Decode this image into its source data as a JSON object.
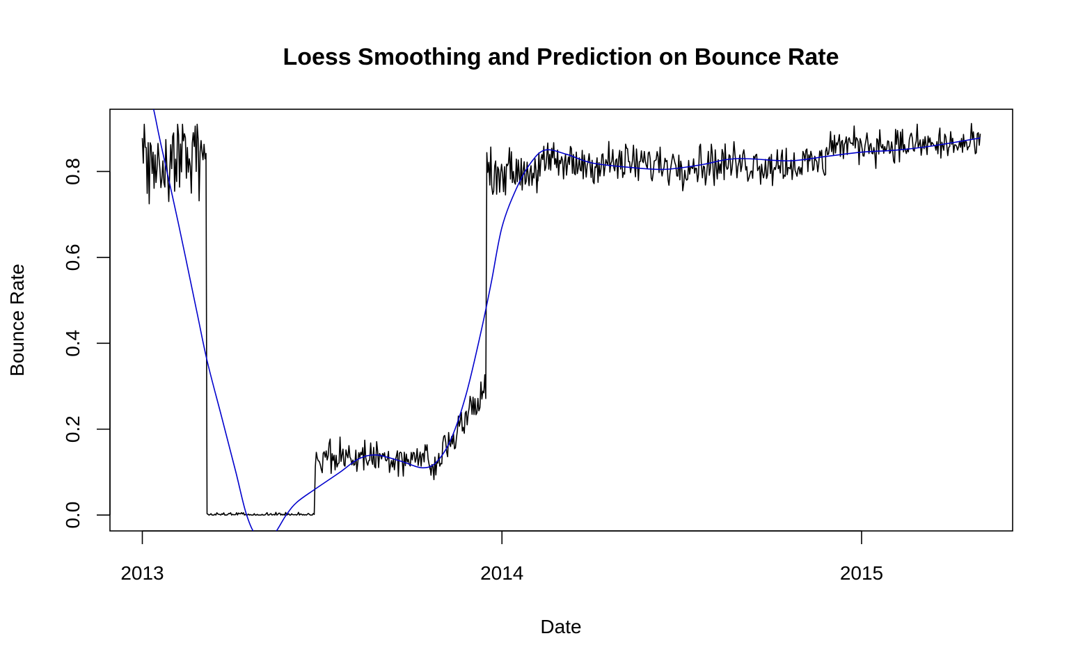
{
  "chart_data": {
    "type": "line",
    "title": "Loess Smoothing and Prediction on Bounce Rate",
    "xlabel": "Date",
    "ylabel": "Bounce Rate",
    "x_unit": "year",
    "xlim": [
      2012.91,
      2015.42
    ],
    "ylim": [
      -0.037,
      0.945
    ],
    "x_ticks": [
      {
        "value": 2013,
        "label": "2013"
      },
      {
        "value": 2014,
        "label": "2014"
      },
      {
        "value": 2015,
        "label": "2015"
      }
    ],
    "y_ticks": [
      {
        "value": 0.0,
        "label": "0.0"
      },
      {
        "value": 0.2,
        "label": "0.2"
      },
      {
        "value": 0.4,
        "label": "0.4"
      },
      {
        "value": 0.6,
        "label": "0.6"
      },
      {
        "value": 0.8,
        "label": "0.8"
      }
    ],
    "grid": false,
    "legend": "none",
    "series": [
      {
        "color": "#000000",
        "segments": [
          {
            "x_start": 2013.0,
            "x_end": 2013.177,
            "mean": 0.83,
            "amplitude": 0.06,
            "min": 0.725,
            "max": 0.91
          },
          {
            "x_start": 2013.18,
            "x_end": 2013.478,
            "mean": 0.001,
            "amplitude": 0.003,
            "min": 0.0,
            "max": 0.01
          },
          {
            "x_start": 2013.481,
            "x_end": 2013.8,
            "mean": 0.135,
            "amplitude": 0.025,
            "min": 0.09,
            "max": 0.19
          },
          {
            "x_start": 2013.8,
            "x_end": 2013.955,
            "mean": 0.2,
            "amplitude": 0.035,
            "min": 0.08,
            "max": 0.345
          },
          {
            "x_start": 2013.958,
            "x_end": 2014.1,
            "mean": 0.8,
            "amplitude": 0.03,
            "min": 0.74,
            "max": 0.87
          },
          {
            "x_start": 2014.1,
            "x_end": 2014.9,
            "mean": 0.818,
            "amplitude": 0.03,
            "min": 0.745,
            "max": 0.87
          },
          {
            "x_start": 2014.9,
            "x_end": 2015.33,
            "mean": 0.862,
            "amplitude": 0.025,
            "min": 0.79,
            "max": 0.912
          }
        ]
      },
      {
        "color": "#0000cc",
        "x": [
          2013.0,
          2013.03,
          2013.05,
          2013.1,
          2013.15,
          2013.18,
          2013.22,
          2013.26,
          2013.29,
          2013.32,
          2013.36,
          2013.4,
          2013.43,
          2013.48,
          2013.55,
          2013.6,
          2013.65,
          2013.72,
          2013.78,
          2013.82,
          2013.86,
          2013.9,
          2013.94,
          2013.97,
          2014.0,
          2014.04,
          2014.08,
          2014.12,
          2014.18,
          2014.25,
          2014.35,
          2014.45,
          2014.55,
          2014.65,
          2014.8,
          2014.9,
          2015.0,
          2015.1,
          2015.2,
          2015.33
        ],
        "y": [
          1.05,
          0.95,
          0.87,
          0.68,
          0.48,
          0.36,
          0.23,
          0.1,
          0.0,
          -0.05,
          -0.05,
          0.0,
          0.03,
          0.06,
          0.1,
          0.13,
          0.14,
          0.125,
          0.11,
          0.125,
          0.18,
          0.28,
          0.42,
          0.54,
          0.67,
          0.76,
          0.82,
          0.85,
          0.84,
          0.82,
          0.81,
          0.805,
          0.815,
          0.83,
          0.825,
          0.835,
          0.845,
          0.85,
          0.86,
          0.878
        ]
      }
    ]
  }
}
